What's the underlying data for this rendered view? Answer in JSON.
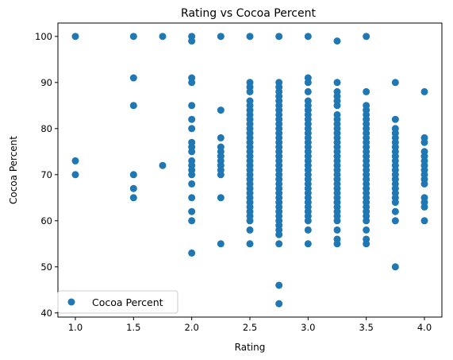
{
  "chart_data": {
    "type": "scatter",
    "title": "Rating vs Cocoa Percent",
    "xlabel": "Rating",
    "ylabel": "Cocoa Percent",
    "xlim": [
      0.85,
      4.15
    ],
    "ylim": [
      39.1,
      102.9
    ],
    "xticks": [
      1.0,
      1.5,
      2.0,
      2.5,
      3.0,
      3.5,
      4.0
    ],
    "xtick_labels": [
      "1.0",
      "1.5",
      "2.0",
      "2.5",
      "3.0",
      "3.5",
      "4.0"
    ],
    "yticks": [
      40,
      50,
      60,
      70,
      80,
      90,
      100
    ],
    "ytick_labels": [
      "40",
      "50",
      "60",
      "70",
      "80",
      "90",
      "100"
    ],
    "grid": false,
    "legend": {
      "placement": "lower-left",
      "entries": [
        "Cocoa Percent"
      ]
    },
    "marker_color": "#1f77b4",
    "series": [
      {
        "name": "Cocoa Percent",
        "points": [
          [
            1.0,
            100
          ],
          [
            1.0,
            73
          ],
          [
            1.0,
            70
          ],
          [
            1.5,
            100
          ],
          [
            1.5,
            91
          ],
          [
            1.5,
            85
          ],
          [
            1.5,
            70
          ],
          [
            1.5,
            67
          ],
          [
            1.5,
            65
          ],
          [
            1.75,
            100
          ],
          [
            1.75,
            72
          ],
          [
            2.0,
            100
          ],
          [
            2.0,
            99
          ],
          [
            2.0,
            91
          ],
          [
            2.0,
            90
          ],
          [
            2.0,
            85
          ],
          [
            2.0,
            82
          ],
          [
            2.0,
            80
          ],
          [
            2.0,
            77
          ],
          [
            2.0,
            76
          ],
          [
            2.0,
            75
          ],
          [
            2.0,
            73
          ],
          [
            2.0,
            72
          ],
          [
            2.0,
            71
          ],
          [
            2.0,
            70
          ],
          [
            2.0,
            68
          ],
          [
            2.0,
            65
          ],
          [
            2.0,
            62
          ],
          [
            2.0,
            60
          ],
          [
            2.0,
            53
          ],
          [
            2.25,
            100
          ],
          [
            2.25,
            84
          ],
          [
            2.25,
            78
          ],
          [
            2.25,
            76
          ],
          [
            2.25,
            75
          ],
          [
            2.25,
            74
          ],
          [
            2.25,
            73
          ],
          [
            2.25,
            72
          ],
          [
            2.25,
            71
          ],
          [
            2.25,
            70
          ],
          [
            2.25,
            65
          ],
          [
            2.25,
            55
          ],
          [
            2.5,
            100
          ],
          [
            2.5,
            90
          ],
          [
            2.5,
            89
          ],
          [
            2.5,
            88
          ],
          [
            2.5,
            86
          ],
          [
            2.5,
            85
          ],
          [
            2.5,
            84
          ],
          [
            2.5,
            83
          ],
          [
            2.5,
            82
          ],
          [
            2.5,
            81
          ],
          [
            2.5,
            80
          ],
          [
            2.5,
            79
          ],
          [
            2.5,
            78
          ],
          [
            2.5,
            77
          ],
          [
            2.5,
            76
          ],
          [
            2.5,
            75
          ],
          [
            2.5,
            74
          ],
          [
            2.5,
            73
          ],
          [
            2.5,
            72
          ],
          [
            2.5,
            71
          ],
          [
            2.5,
            70
          ],
          [
            2.5,
            69
          ],
          [
            2.5,
            68
          ],
          [
            2.5,
            67
          ],
          [
            2.5,
            66
          ],
          [
            2.5,
            65
          ],
          [
            2.5,
            64
          ],
          [
            2.5,
            63
          ],
          [
            2.5,
            62
          ],
          [
            2.5,
            61
          ],
          [
            2.5,
            60
          ],
          [
            2.5,
            58
          ],
          [
            2.5,
            55
          ],
          [
            2.75,
            100
          ],
          [
            2.75,
            90
          ],
          [
            2.75,
            89
          ],
          [
            2.75,
            88
          ],
          [
            2.75,
            87
          ],
          [
            2.75,
            86
          ],
          [
            2.75,
            85
          ],
          [
            2.75,
            84
          ],
          [
            2.75,
            83
          ],
          [
            2.75,
            82
          ],
          [
            2.75,
            81
          ],
          [
            2.75,
            80
          ],
          [
            2.75,
            79
          ],
          [
            2.75,
            78
          ],
          [
            2.75,
            77
          ],
          [
            2.75,
            76
          ],
          [
            2.75,
            75
          ],
          [
            2.75,
            74
          ],
          [
            2.75,
            73
          ],
          [
            2.75,
            72
          ],
          [
            2.75,
            71
          ],
          [
            2.75,
            70
          ],
          [
            2.75,
            69
          ],
          [
            2.75,
            68
          ],
          [
            2.75,
            67
          ],
          [
            2.75,
            66
          ],
          [
            2.75,
            65
          ],
          [
            2.75,
            64
          ],
          [
            2.75,
            63
          ],
          [
            2.75,
            62
          ],
          [
            2.75,
            61
          ],
          [
            2.75,
            60
          ],
          [
            2.75,
            59
          ],
          [
            2.75,
            58
          ],
          [
            2.75,
            57
          ],
          [
            2.75,
            55
          ],
          [
            2.75,
            46
          ],
          [
            2.75,
            42
          ],
          [
            3.0,
            100
          ],
          [
            3.0,
            91
          ],
          [
            3.0,
            90
          ],
          [
            3.0,
            88
          ],
          [
            3.0,
            86
          ],
          [
            3.0,
            85
          ],
          [
            3.0,
            84
          ],
          [
            3.0,
            83
          ],
          [
            3.0,
            82
          ],
          [
            3.0,
            81
          ],
          [
            3.0,
            80
          ],
          [
            3.0,
            79
          ],
          [
            3.0,
            78
          ],
          [
            3.0,
            77
          ],
          [
            3.0,
            76
          ],
          [
            3.0,
            75
          ],
          [
            3.0,
            74
          ],
          [
            3.0,
            73
          ],
          [
            3.0,
            72
          ],
          [
            3.0,
            71
          ],
          [
            3.0,
            70
          ],
          [
            3.0,
            69
          ],
          [
            3.0,
            68
          ],
          [
            3.0,
            67
          ],
          [
            3.0,
            66
          ],
          [
            3.0,
            65
          ],
          [
            3.0,
            64
          ],
          [
            3.0,
            63
          ],
          [
            3.0,
            62
          ],
          [
            3.0,
            61
          ],
          [
            3.0,
            60
          ],
          [
            3.0,
            58
          ],
          [
            3.0,
            55
          ],
          [
            3.25,
            99
          ],
          [
            3.25,
            90
          ],
          [
            3.25,
            88
          ],
          [
            3.25,
            87
          ],
          [
            3.25,
            86
          ],
          [
            3.25,
            85
          ],
          [
            3.25,
            83
          ],
          [
            3.25,
            82
          ],
          [
            3.25,
            81
          ],
          [
            3.25,
            80
          ],
          [
            3.25,
            79
          ],
          [
            3.25,
            78
          ],
          [
            3.25,
            77
          ],
          [
            3.25,
            76
          ],
          [
            3.25,
            75
          ],
          [
            3.25,
            74
          ],
          [
            3.25,
            73
          ],
          [
            3.25,
            72
          ],
          [
            3.25,
            71
          ],
          [
            3.25,
            70
          ],
          [
            3.25,
            69
          ],
          [
            3.25,
            68
          ],
          [
            3.25,
            67
          ],
          [
            3.25,
            66
          ],
          [
            3.25,
            65
          ],
          [
            3.25,
            64
          ],
          [
            3.25,
            63
          ],
          [
            3.25,
            62
          ],
          [
            3.25,
            61
          ],
          [
            3.25,
            60
          ],
          [
            3.25,
            58
          ],
          [
            3.25,
            56
          ],
          [
            3.25,
            55
          ],
          [
            3.5,
            100
          ],
          [
            3.5,
            88
          ],
          [
            3.5,
            85
          ],
          [
            3.5,
            84
          ],
          [
            3.5,
            83
          ],
          [
            3.5,
            82
          ],
          [
            3.5,
            81
          ],
          [
            3.5,
            80
          ],
          [
            3.5,
            79
          ],
          [
            3.5,
            78
          ],
          [
            3.5,
            77
          ],
          [
            3.5,
            76
          ],
          [
            3.5,
            75
          ],
          [
            3.5,
            74
          ],
          [
            3.5,
            73
          ],
          [
            3.5,
            72
          ],
          [
            3.5,
            71
          ],
          [
            3.5,
            70
          ],
          [
            3.5,
            69
          ],
          [
            3.5,
            68
          ],
          [
            3.5,
            67
          ],
          [
            3.5,
            66
          ],
          [
            3.5,
            65
          ],
          [
            3.5,
            64
          ],
          [
            3.5,
            63
          ],
          [
            3.5,
            62
          ],
          [
            3.5,
            61
          ],
          [
            3.5,
            60
          ],
          [
            3.5,
            58
          ],
          [
            3.5,
            56
          ],
          [
            3.5,
            55
          ],
          [
            3.75,
            90
          ],
          [
            3.75,
            82
          ],
          [
            3.75,
            80
          ],
          [
            3.75,
            79
          ],
          [
            3.75,
            78
          ],
          [
            3.75,
            77
          ],
          [
            3.75,
            76
          ],
          [
            3.75,
            75
          ],
          [
            3.75,
            74
          ],
          [
            3.75,
            73
          ],
          [
            3.75,
            72
          ],
          [
            3.75,
            71
          ],
          [
            3.75,
            70
          ],
          [
            3.75,
            69
          ],
          [
            3.75,
            68
          ],
          [
            3.75,
            67
          ],
          [
            3.75,
            66
          ],
          [
            3.75,
            65
          ],
          [
            3.75,
            64
          ],
          [
            3.75,
            62
          ],
          [
            3.75,
            60
          ],
          [
            3.75,
            50
          ],
          [
            4.0,
            88
          ],
          [
            4.0,
            78
          ],
          [
            4.0,
            77
          ],
          [
            4.0,
            75
          ],
          [
            4.0,
            74
          ],
          [
            4.0,
            73
          ],
          [
            4.0,
            72
          ],
          [
            4.0,
            71
          ],
          [
            4.0,
            70
          ],
          [
            4.0,
            69
          ],
          [
            4.0,
            68
          ],
          [
            4.0,
            65
          ],
          [
            4.0,
            64
          ],
          [
            4.0,
            63
          ],
          [
            4.0,
            60
          ]
        ]
      }
    ]
  }
}
